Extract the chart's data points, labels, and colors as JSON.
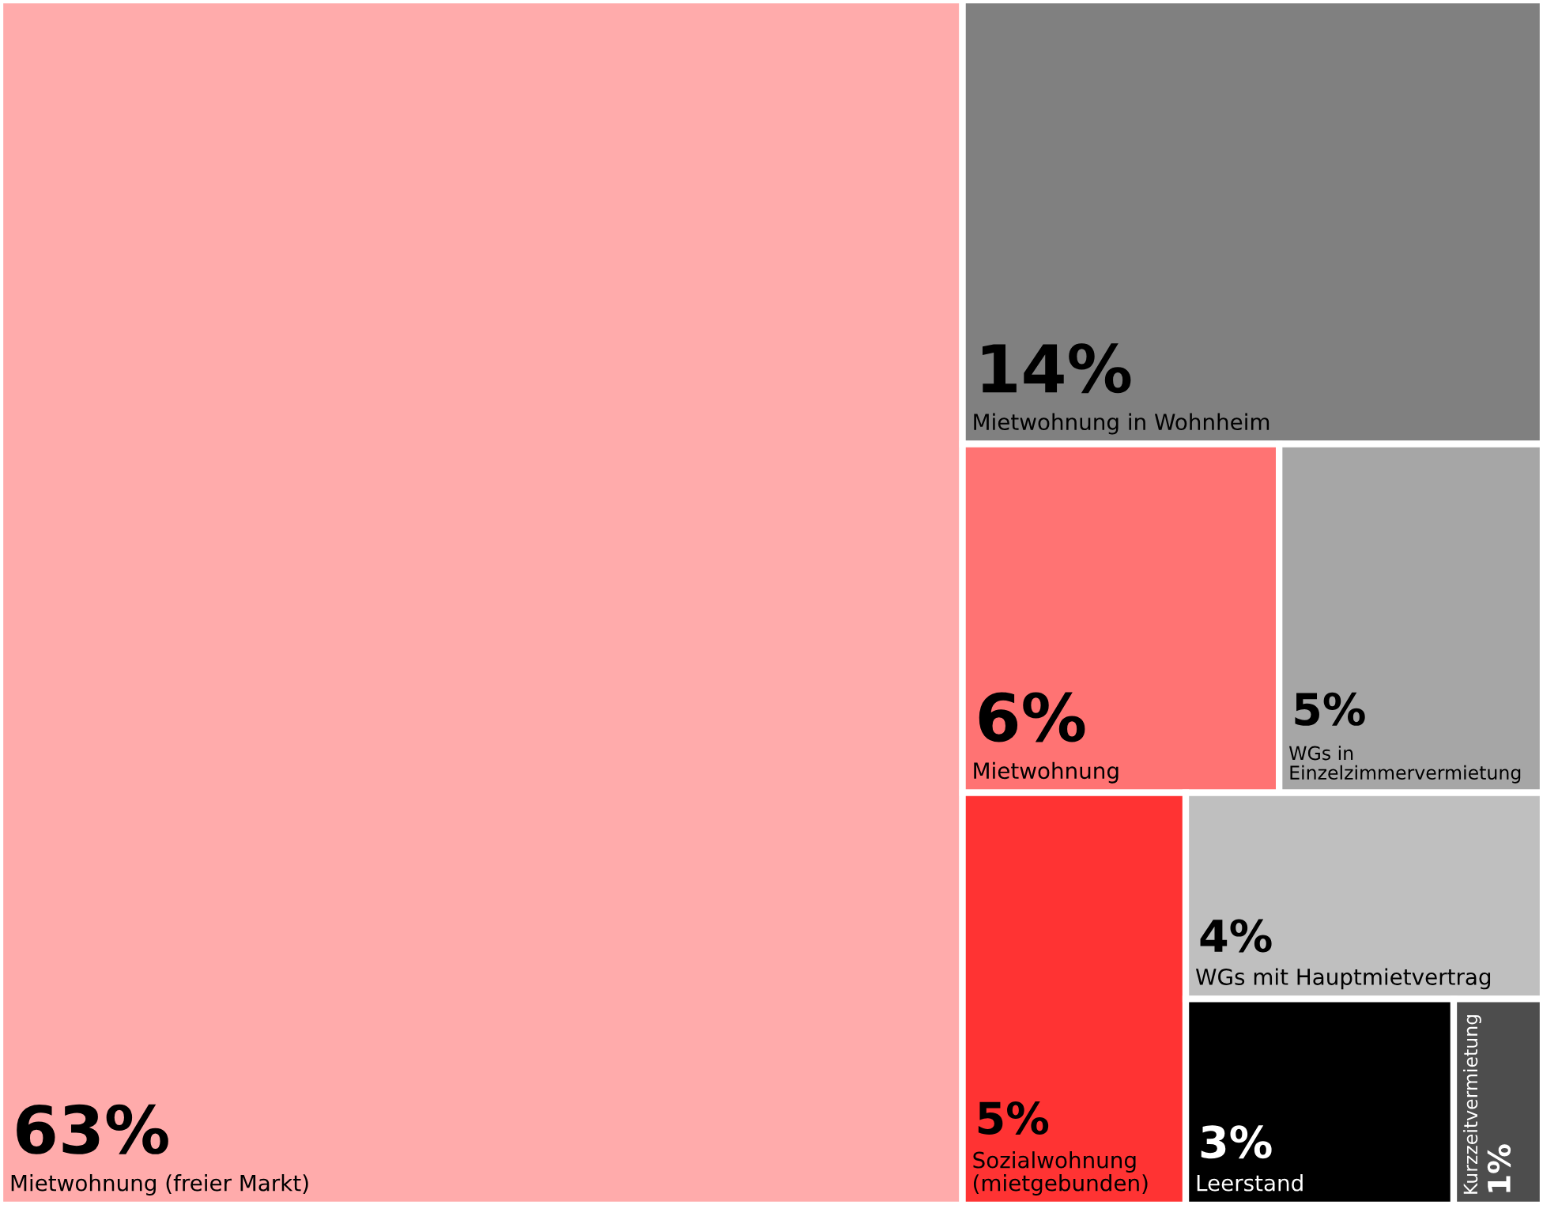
{
  "chart_data": {
    "type": "other",
    "categories": [
      "Mietwohnung (freier Markt)",
      "Mietwohnung in Wohnheim",
      "Mietwohnung",
      "WGs in Einzelzimmervermietung",
      "Sozialwohnung (mietgebunden)",
      "WGs mit Hauptmietvertrag",
      "Leerstand",
      "Kurzzeitvermietung"
    ],
    "values": [
      63,
      14,
      6,
      5,
      5,
      4,
      3,
      1
    ],
    "value_labels": [
      "63%",
      "14%",
      "6%",
      "5%",
      "5%",
      "4%",
      "3%",
      "1%"
    ],
    "colors": [
      "#ffabab",
      "#808080",
      "#ff7373",
      "#a6a6a6",
      "#ff3333",
      "#bfbfbf",
      "#000000",
      "#4d4d4d"
    ]
  }
}
